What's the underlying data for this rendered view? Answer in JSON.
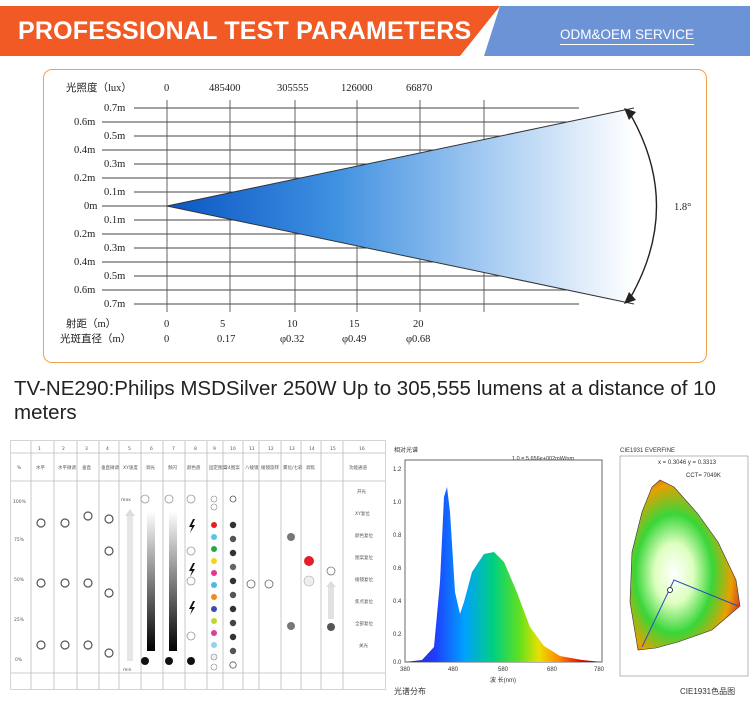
{
  "header": {
    "title": "PROFESSIONAL TEST PARAMETERS",
    "service": "ODM&OEM SERVICE",
    "colors": {
      "title_bg": "#f15a24",
      "service_bg": "#6b93d6"
    }
  },
  "beam_diagram": {
    "illuminance_label": "光照度（lux）",
    "illuminance_values": [
      "0",
      "485400",
      "305555",
      "126000",
      "66870"
    ],
    "radius_labels_upper": [
      "0.7m",
      "0.6m",
      "0.5m",
      "0.4m",
      "0.3m",
      "0.2m",
      "0.1m"
    ],
    "center_label": "0m",
    "radius_labels_lower": [
      "0.1m",
      "0.2m",
      "0.3m",
      "0.4m",
      "0.5m",
      "0.6m",
      "0.7m"
    ],
    "beam_angle": "1.8°",
    "distance_label": "射距（m）",
    "distance_values": [
      "0",
      "5",
      "10",
      "15",
      "20"
    ],
    "diameter_label": "光斑直径（m）",
    "diameter_values": [
      "0",
      "0.17",
      "φ0.32",
      "φ0.49",
      "φ0.68"
    ]
  },
  "caption": "TV-NE290:Philips MSDSilver 250W Up to 305,555 lumens at a distance of 10 meters",
  "dmx_chart": {
    "channel_numbers": [
      "1",
      "2",
      "3",
      "4",
      "5",
      "6",
      "7",
      "8",
      "9",
      "10",
      "11",
      "12",
      "13",
      "14",
      "15",
      "16"
    ],
    "channel_names": [
      "%",
      "水平",
      "水平微调",
      "垂直",
      "垂直微调",
      "XY速度",
      "调光",
      "频闪",
      "颜色盘",
      "固定图案",
      "24图案",
      "八棱镜",
      "棱镜旋转",
      "雾化/七彩",
      "调焦",
      "功能通道"
    ],
    "percent_labels": [
      "100%",
      "75%",
      "50%",
      "25%",
      "0%"
    ],
    "function_labels": [
      "开光",
      "XY复位",
      "颜色复位",
      "图案复位",
      "棱镜复位",
      "焦点复位",
      "全部复位",
      "关光"
    ],
    "speed_labels": [
      "max",
      "min"
    ]
  },
  "spectrum_chart": {
    "title": "相对光谱",
    "equation": "1.0 = 5.656e+002mW/nm",
    "y_ticks": [
      "1.2",
      "1.0",
      "0.8",
      "0.6",
      "0.4",
      "0.2",
      "0.0"
    ],
    "x_ticks": [
      "380",
      "480",
      "580",
      "680",
      "780"
    ],
    "xlabel": "波 长(nm)",
    "footer": "光谱分布"
  },
  "cie_chart": {
    "title": "CIE1931 EVERFINE",
    "coords": "x = 0.3046 y = 0.3313",
    "cct": "CCT= 7049K",
    "footer": "CIE1931色品图"
  }
}
